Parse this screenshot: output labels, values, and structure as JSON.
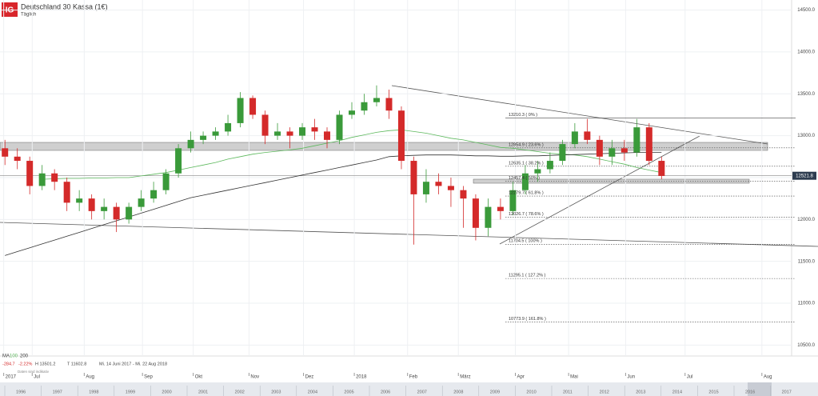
{
  "chart_data": {
    "type": "candlestick",
    "title": "Deutschland 30 Kassa (1€)",
    "subtitle": "Täglich",
    "categories": [
      null,
      null,
      null,
      null,
      null,
      null,
      null,
      null,
      null,
      null,
      null,
      null,
      null,
      null,
      null,
      null,
      null,
      null,
      null,
      null,
      null,
      null,
      null,
      null,
      null,
      null,
      null,
      null,
      null,
      null,
      null,
      null,
      null,
      null,
      null,
      null,
      null,
      null,
      null,
      null,
      null,
      null,
      null,
      null,
      null,
      null,
      null,
      null,
      null,
      null,
      null,
      null,
      null,
      null
    ],
    "open": [
      12850,
      12750,
      12700,
      12400,
      12550,
      12450,
      12200,
      12250,
      12100,
      12150,
      12000,
      12150,
      12250,
      12350,
      12550,
      12850,
      12950,
      13000,
      13050,
      13150,
      13450,
      13250,
      13000,
      13050,
      13000,
      13100,
      13050,
      12950,
      13250,
      13300,
      13400,
      13450,
      13300,
      12700,
      12300,
      12450,
      12400,
      12350,
      12250,
      11900,
      12150,
      12100,
      12350,
      12550,
      12600,
      12700,
      12900,
      13050,
      12950,
      12750,
      12850,
      12800,
      13100,
      12700
    ],
    "high": [
      12950,
      12850,
      12750,
      12650,
      12600,
      12500,
      12350,
      12300,
      12250,
      12200,
      12200,
      12350,
      12450,
      12600,
      12900,
      13050,
      13050,
      13100,
      13250,
      13520,
      13480,
      13300,
      13150,
      13100,
      13150,
      13200,
      13100,
      13300,
      13400,
      13500,
      13600,
      13550,
      13350,
      12750,
      12600,
      12550,
      12500,
      12400,
      12300,
      12250,
      12250,
      12450,
      12650,
      12700,
      12800,
      12950,
      13150,
      13200,
      13000,
      12950,
      12950,
      13200,
      13150,
      12750
    ],
    "low": [
      12650,
      12600,
      12300,
      12350,
      12350,
      12100,
      12100,
      12000,
      12000,
      11850,
      11950,
      12100,
      12200,
      12300,
      12500,
      12800,
      12900,
      12950,
      13000,
      13100,
      13200,
      12900,
      12950,
      12850,
      12950,
      12950,
      12850,
      12900,
      13200,
      13250,
      13350,
      13200,
      12600,
      11700,
      12200,
      12300,
      12150,
      11900,
      11750,
      11800,
      12000,
      12050,
      12300,
      12450,
      12550,
      12650,
      12850,
      12900,
      12650,
      12650,
      12700,
      12750,
      12650,
      12480
    ],
    "close": [
      12750,
      12700,
      12400,
      12550,
      12450,
      12200,
      12250,
      12100,
      12150,
      12000,
      12150,
      12250,
      12350,
      12550,
      12850,
      12950,
      13000,
      13050,
      13150,
      13450,
      13250,
      13000,
      13050,
      13000,
      13100,
      13050,
      12950,
      13250,
      13300,
      13400,
      13450,
      13300,
      12700,
      12300,
      12450,
      12400,
      12350,
      12250,
      11900,
      12150,
      12100,
      12350,
      12550,
      12600,
      12700,
      12900,
      13050,
      12950,
      12750,
      12850,
      12800,
      13100,
      12700,
      12520
    ],
    "up_color": "#3a9a3a",
    "down_color": "#d42a2a",
    "moving_averages": [
      {
        "period": 100,
        "color": "#5cb85c",
        "values": [
          null,
          null,
          null,
          12480,
          12485,
          12490,
          12490,
          12495,
          12495,
          12500,
          12500,
          12520,
          12540,
          12560,
          12590,
          12620,
          12650,
          12680,
          12720,
          12750,
          12780,
          12800,
          12815,
          12830,
          12850,
          12880,
          12910,
          12940,
          12980,
          13010,
          13040,
          13060,
          13070,
          13050,
          13030,
          13000,
          12970,
          12950,
          12920,
          12890,
          12860,
          12850,
          12830,
          12810,
          12790,
          12780,
          12770,
          12750,
          12720,
          12690,
          12660,
          12620,
          12590,
          12560
        ]
      },
      {
        "period": 200,
        "color": "#333333",
        "values": [
          11570,
          11616,
          11662,
          11708,
          11754,
          11800,
          11846,
          11892,
          11938,
          11984,
          12030,
          12076,
          12122,
          12168,
          12214,
          12260,
          12290,
          12320,
          12350,
          12380,
          12410,
          12440,
          12470,
          12500,
          12530,
          12560,
          12590,
          12620,
          12650,
          12680,
          12710,
          12750,
          12760,
          12765,
          12770,
          12770,
          12770,
          12765,
          12760,
          12760,
          12755,
          12755,
          12760,
          12760,
          12765,
          12770,
          12775,
          12780,
          12785,
          12790,
          12795,
          12800,
          12800,
          12800
        ]
      }
    ],
    "ylim": [
      10370,
      14620
    ],
    "yticks": [
      {
        "value": 14500,
        "label": "14500.0"
      },
      {
        "value": 14000,
        "label": "14000.0"
      },
      {
        "value": 13500,
        "label": "13500.0"
      },
      {
        "value": 13000,
        "label": "13000.0"
      },
      {
        "value": 12500,
        "label": "12500.0"
      },
      {
        "value": 12000,
        "label": "12000.0"
      },
      {
        "value": 11500,
        "label": "11500.0"
      },
      {
        "value": 11000,
        "label": "11000.0"
      },
      {
        "value": 10500,
        "label": "10500.0"
      }
    ],
    "xlim": [
      -0.4,
      63.5
    ],
    "xticks": [
      {
        "value": -0.1,
        "label": "2017"
      },
      {
        "value": 2.2,
        "label": "Jul"
      },
      {
        "value": 6.4,
        "label": "Aug"
      },
      {
        "value": 11.1,
        "label": "Sep"
      },
      {
        "value": 15.2,
        "label": "Okt"
      },
      {
        "value": 19.7,
        "label": "Nov"
      },
      {
        "value": 24.1,
        "label": "Dez"
      },
      {
        "value": 28.2,
        "label": "2018"
      },
      {
        "value": 32.5,
        "label": "Feb"
      },
      {
        "value": 36.6,
        "label": "März"
      },
      {
        "value": 41.2,
        "label": "Apr"
      },
      {
        "value": 45.5,
        "label": "Mai"
      },
      {
        "value": 50.1,
        "label": "Jun"
      },
      {
        "value": 54.9,
        "label": "Jul"
      },
      {
        "value": 61.1,
        "label": "Aug"
      }
    ],
    "grid": true,
    "last_price": 12521.8,
    "levels": [
      {
        "value": 13210.3,
        "label": "13210.3 ( 0% )"
      },
      {
        "value": 12854.9,
        "label": "12854.9 ( 23.6% )"
      },
      {
        "value": 12635.1,
        "label": "12635.1 ( 38.2% )"
      },
      {
        "value": 12457.4,
        "label": "12457.4 ( 50% )"
      },
      {
        "value": 12279.7,
        "label": "12279.7 ( 61.8% )"
      },
      {
        "value": 12026.7,
        "label": "12026.7 ( 78.6% )"
      },
      {
        "value": 11704.5,
        "label": "11704.5 ( 100% )"
      },
      {
        "value": 11295.1,
        "label": "11295.1 ( 127.2% )"
      },
      {
        "value": 10773.9,
        "label": "10773.9 ( 161.8% )"
      }
    ],
    "ma_label": "MA",
    "stats": [
      "-284.7",
      "-2.22%",
      "H 13501.2",
      "T 11602.8",
      "Mi. 14 Juni 2017 - Mi. 22 Aug 2018"
    ],
    "disclaimer": "Daten sind indikativ",
    "navigator_years": [
      "1996",
      "1997",
      "1998",
      "1999",
      "2000",
      "2001",
      "2002",
      "2003",
      "2004",
      "2005",
      "2006",
      "2007",
      "2008",
      "2009",
      "2010",
      "2011",
      "2012",
      "2013",
      "2014",
      "2015",
      "2016",
      "2017"
    ]
  }
}
